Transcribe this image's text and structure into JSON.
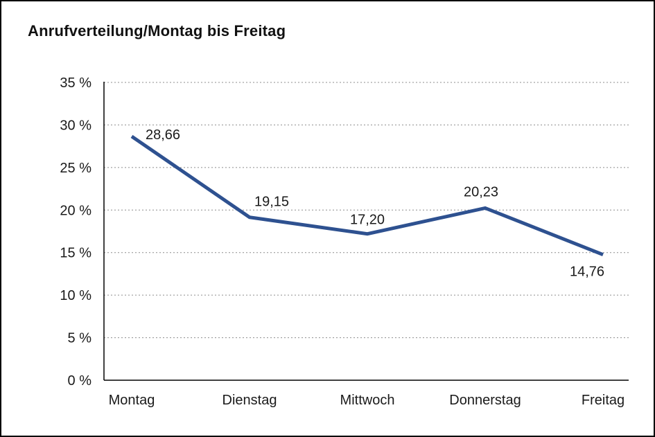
{
  "chart_data": {
    "type": "line",
    "title": "Anrufverteilung/Montag bis Freitag",
    "categories": [
      "Montag",
      "Dienstag",
      "Mittwoch",
      "Donnerstag",
      "Freitag"
    ],
    "values": [
      28.66,
      19.15,
      17.2,
      20.23,
      14.76
    ],
    "value_labels": [
      "28,66",
      "19,15",
      "17,20",
      "20,23",
      "14,76"
    ],
    "xlabel": "",
    "ylabel": "",
    "ylim": [
      0,
      35
    ],
    "ytick_step": 5,
    "ytick_labels": [
      "0 %",
      "5 %",
      "10 %",
      "15 %",
      "20 %",
      "25 %",
      "30 %",
      "35 %"
    ],
    "grid": "horizontal-dotted",
    "legend": "none",
    "line_color": "#2E5190",
    "grid_color": "#8c8c8c",
    "axis_color": "#000000",
    "text_color": "#1a1a1a"
  }
}
